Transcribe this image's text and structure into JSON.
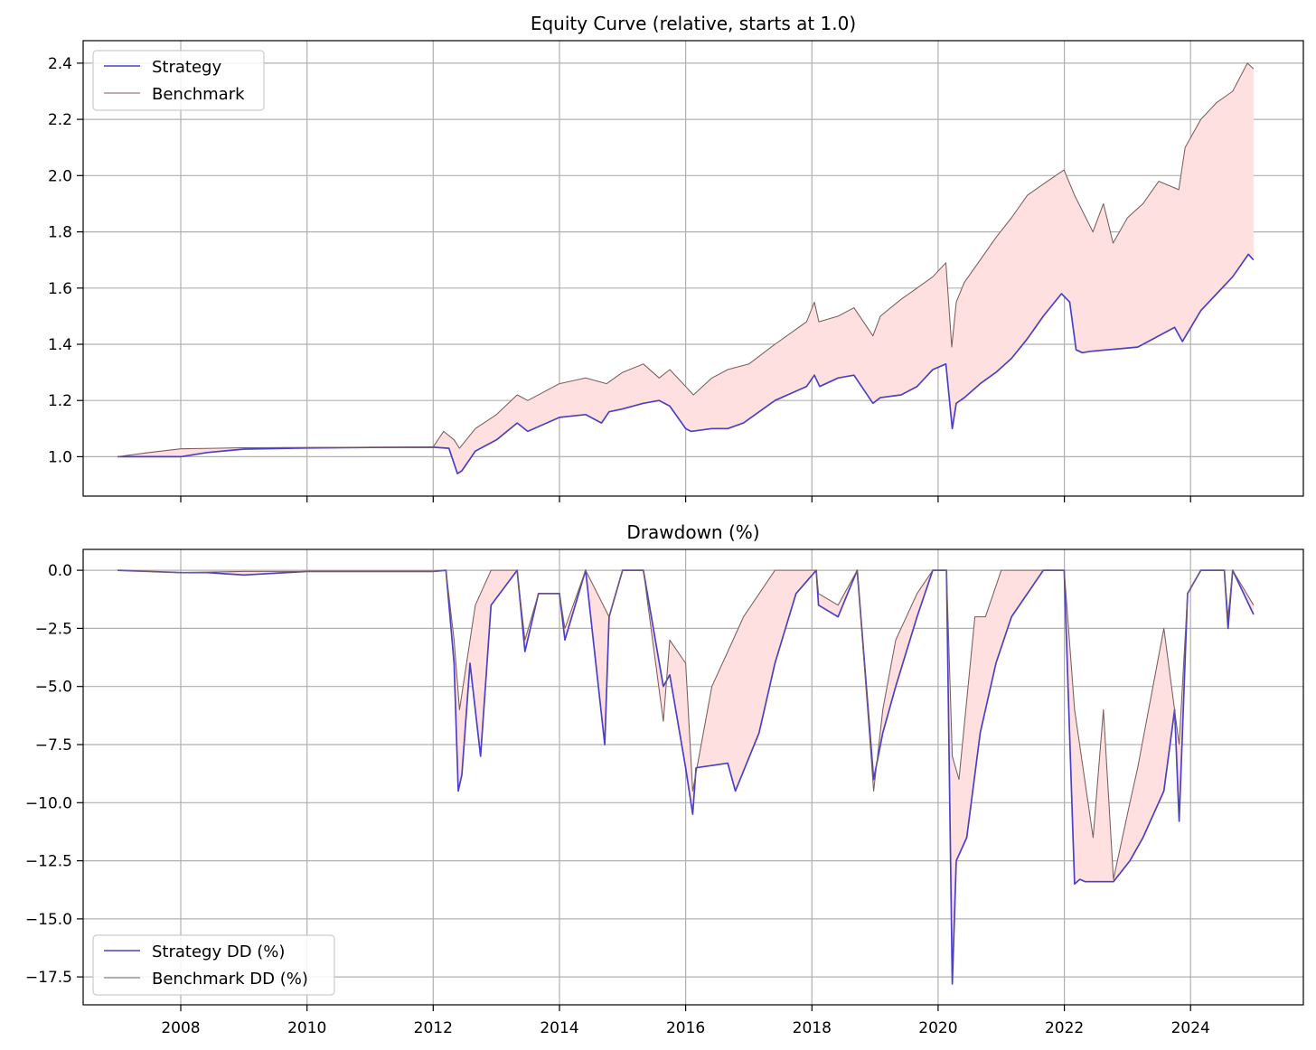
{
  "chart_data": [
    {
      "type": "line",
      "title": "Equity Curve (relative, starts at 1.0)",
      "xlabel": "",
      "ylabel": "",
      "x_type": "date",
      "xlim": [
        "2006-06-15",
        "2025-10-15"
      ],
      "ylim": [
        0.86,
        2.48
      ],
      "yticks": [
        1.0,
        1.2,
        1.4,
        1.6,
        1.8,
        2.0,
        2.2,
        2.4
      ],
      "ytick_labels": [
        "1.0",
        "1.2",
        "1.4",
        "1.6",
        "1.8",
        "2.0",
        "2.2",
        "2.4"
      ],
      "xticks": [
        "2008-01-01",
        "2010-01-01",
        "2012-01-01",
        "2014-01-01",
        "2016-01-01",
        "2018-01-01",
        "2020-01-01",
        "2022-01-01",
        "2024-01-01"
      ],
      "xtick_labels": [],
      "grid": true,
      "legend": "upper-left",
      "fill_between": {
        "color": "#ffe0e0",
        "between": [
          "Benchmark",
          "Strategy"
        ]
      },
      "series": [
        {
          "name": "Benchmark",
          "color": "#7b5c5c",
          "line_width": 0.8,
          "x": [
            "2007-01-01",
            "2007-07-01",
            "2008-01-01",
            "2008-07-01",
            "2009-01-01",
            "2010-01-01",
            "2011-01-01",
            "2012-01-01",
            "2012-03-01",
            "2012-05-01",
            "2012-06-01",
            "2012-09-01",
            "2013-01-01",
            "2013-05-01",
            "2013-07-01",
            "2014-01-01",
            "2014-06-01",
            "2014-10-01",
            "2015-01-01",
            "2015-05-01",
            "2015-08-01",
            "2015-10-01",
            "2016-01-01",
            "2016-02-15",
            "2016-06-01",
            "2016-09-01",
            "2017-01-01",
            "2017-06-01",
            "2017-12-01",
            "2018-01-15",
            "2018-02-10",
            "2018-06-01",
            "2018-09-01",
            "2018-12-20",
            "2019-02-01",
            "2019-06-01",
            "2019-09-01",
            "2019-12-01",
            "2020-02-15",
            "2020-03-20",
            "2020-04-15",
            "2020-06-01",
            "2020-09-01",
            "2020-12-01",
            "2021-03-01",
            "2021-06-01",
            "2021-09-01",
            "2021-12-30",
            "2022-03-01",
            "2022-06-15",
            "2022-08-15",
            "2022-10-10",
            "2023-01-01",
            "2023-04-01",
            "2023-07-01",
            "2023-10-25",
            "2023-12-01",
            "2024-03-01",
            "2024-06-01",
            "2024-09-01",
            "2024-11-25",
            "2024-12-31"
          ],
          "values": [
            1.0,
            1.015,
            1.028,
            1.03,
            1.032,
            1.033,
            1.034,
            1.035,
            1.09,
            1.06,
            1.03,
            1.1,
            1.15,
            1.22,
            1.2,
            1.26,
            1.28,
            1.26,
            1.3,
            1.33,
            1.28,
            1.31,
            1.25,
            1.22,
            1.28,
            1.31,
            1.33,
            1.4,
            1.48,
            1.55,
            1.48,
            1.5,
            1.53,
            1.43,
            1.5,
            1.56,
            1.6,
            1.64,
            1.69,
            1.39,
            1.55,
            1.62,
            1.7,
            1.78,
            1.85,
            1.93,
            1.97,
            2.02,
            1.93,
            1.8,
            1.9,
            1.76,
            1.85,
            1.9,
            1.98,
            1.95,
            2.1,
            2.2,
            2.26,
            2.3,
            2.4,
            2.38
          ]
        },
        {
          "name": "Strategy",
          "color": "#4a40c8",
          "line_width": 1.3,
          "x": [
            "2007-01-01",
            "2007-07-01",
            "2008-01-01",
            "2008-06-01",
            "2009-01-01",
            "2010-01-01",
            "2011-01-01",
            "2012-01-01",
            "2012-04-01",
            "2012-05-20",
            "2012-06-15",
            "2012-09-01",
            "2013-01-01",
            "2013-05-01",
            "2013-07-01",
            "2014-01-01",
            "2014-06-01",
            "2014-09-01",
            "2014-10-15",
            "2015-01-01",
            "2015-05-01",
            "2015-08-01",
            "2015-10-01",
            "2016-01-01",
            "2016-02-01",
            "2016-06-01",
            "2016-09-01",
            "2016-12-01",
            "2017-06-01",
            "2017-12-01",
            "2018-01-15",
            "2018-02-15",
            "2018-06-01",
            "2018-09-01",
            "2018-12-20",
            "2019-02-01",
            "2019-06-01",
            "2019-09-01",
            "2019-12-01",
            "2020-02-15",
            "2020-03-23",
            "2020-04-15",
            "2020-06-01",
            "2020-09-01",
            "2020-12-01",
            "2021-03-01",
            "2021-06-01",
            "2021-09-01",
            "2021-12-15",
            "2022-02-01",
            "2022-03-10",
            "2022-04-15",
            "2022-06-01",
            "2023-03-01",
            "2023-06-01",
            "2023-10-01",
            "2023-11-15",
            "2024-03-01",
            "2024-06-01",
            "2024-09-01",
            "2024-12-01",
            "2024-12-31"
          ],
          "values": [
            1.0,
            1.0,
            1.0,
            1.015,
            1.027,
            1.031,
            1.033,
            1.034,
            1.03,
            0.94,
            0.95,
            1.02,
            1.06,
            1.12,
            1.09,
            1.14,
            1.15,
            1.12,
            1.16,
            1.17,
            1.19,
            1.2,
            1.18,
            1.1,
            1.09,
            1.1,
            1.1,
            1.12,
            1.2,
            1.25,
            1.29,
            1.25,
            1.28,
            1.29,
            1.19,
            1.21,
            1.22,
            1.25,
            1.31,
            1.33,
            1.1,
            1.19,
            1.21,
            1.26,
            1.3,
            1.35,
            1.42,
            1.5,
            1.58,
            1.55,
            1.38,
            1.37,
            1.375,
            1.39,
            1.42,
            1.46,
            1.41,
            1.52,
            1.58,
            1.64,
            1.72,
            1.7
          ]
        }
      ]
    },
    {
      "type": "line",
      "title": "Drawdown (%)",
      "xlabel": "",
      "ylabel": "",
      "x_type": "date",
      "xlim": [
        "2006-06-15",
        "2025-10-15"
      ],
      "ylim": [
        -18.7,
        0.9
      ],
      "yticks": [
        0.0,
        -2.5,
        -5.0,
        -7.5,
        -10.0,
        -12.5,
        -15.0,
        -17.5
      ],
      "ytick_labels": [
        "0.0",
        "−2.5",
        "−5.0",
        "−7.5",
        "−10.0",
        "−12.5",
        "−15.0",
        "−17.5"
      ],
      "xticks": [
        "2008-01-01",
        "2010-01-01",
        "2012-01-01",
        "2014-01-01",
        "2016-01-01",
        "2018-01-01",
        "2020-01-01",
        "2022-01-01",
        "2024-01-01"
      ],
      "xtick_labels": [
        "2008",
        "2010",
        "2012",
        "2014",
        "2016",
        "2018",
        "2020",
        "2022",
        "2024"
      ],
      "grid": true,
      "legend": "lower-left",
      "fill_between": {
        "color": "#ffe0e0",
        "between": [
          "Benchmark DD (%)",
          "Strategy DD (%)"
        ]
      },
      "overlap_color": "#2a2a78",
      "series": [
        {
          "name": "Benchmark DD (%)",
          "color": "#7b5c5c",
          "line_width": 0.8,
          "x": [
            "2007-01-01",
            "2008-01-01",
            "2009-01-01",
            "2010-01-01",
            "2011-01-01",
            "2012-01-01",
            "2012-03-15",
            "2012-05-01",
            "2012-06-01",
            "2012-09-01",
            "2012-12-01",
            "2013-05-01",
            "2013-06-15",
            "2013-09-01",
            "2014-01-01",
            "2014-02-01",
            "2014-06-01",
            "2014-10-15",
            "2015-01-01",
            "2015-05-01",
            "2015-08-25",
            "2015-10-01",
            "2016-01-01",
            "2016-02-11",
            "2016-06-01",
            "2016-09-01",
            "2016-12-01",
            "2017-06-01",
            "2018-01-26",
            "2018-02-08",
            "2018-06-01",
            "2018-09-20",
            "2018-12-24",
            "2019-02-15",
            "2019-05-01",
            "2019-09-01",
            "2019-12-01",
            "2020-02-19",
            "2020-03-23",
            "2020-05-01",
            "2020-08-01",
            "2020-10-01",
            "2021-01-01",
            "2021-06-01",
            "2021-12-31",
            "2022-03-01",
            "2022-06-16",
            "2022-08-15",
            "2022-10-12",
            "2023-01-15",
            "2023-03-01",
            "2023-07-31",
            "2023-10-27",
            "2023-12-15",
            "2024-03-01",
            "2024-07-15",
            "2024-08-05",
            "2024-09-01",
            "2024-12-31"
          ],
          "values": [
            0,
            -0.1,
            -0.05,
            -0.05,
            -0.05,
            -0.05,
            0,
            -3.0,
            -6.0,
            -1.5,
            0,
            0,
            -3.0,
            -1.0,
            -1.0,
            -2.5,
            0,
            -2.0,
            0,
            0,
            -6.5,
            -3.0,
            -4.0,
            -9.5,
            -5.0,
            -3.5,
            -2.0,
            0,
            0,
            -1.0,
            -1.5,
            0,
            -9.5,
            -6.0,
            -3.0,
            -1.0,
            0,
            0,
            -8.0,
            -9.0,
            -2.0,
            -2.0,
            0,
            0,
            0,
            -6.0,
            -11.5,
            -6.0,
            -13.3,
            -10.0,
            -8.5,
            -2.5,
            -7.5,
            -1.0,
            0,
            0,
            -2.0,
            0,
            -1.5
          ]
        },
        {
          "name": "Strategy DD (%)",
          "color": "#4a40c8",
          "line_width": 1.3,
          "x": [
            "2007-01-01",
            "2008-01-01",
            "2008-06-01",
            "2009-01-01",
            "2010-01-01",
            "2011-01-01",
            "2012-01-01",
            "2012-03-15",
            "2012-05-01",
            "2012-05-25",
            "2012-06-15",
            "2012-08-01",
            "2012-10-01",
            "2012-12-01",
            "2013-05-01",
            "2013-06-15",
            "2013-09-01",
            "2014-01-01",
            "2014-02-01",
            "2014-06-01",
            "2014-09-20",
            "2014-10-15",
            "2015-01-01",
            "2015-05-01",
            "2015-08-25",
            "2015-10-01",
            "2016-01-01",
            "2016-02-11",
            "2016-03-01",
            "2016-09-01",
            "2016-10-15",
            "2017-03-01",
            "2017-06-01",
            "2017-10-01",
            "2018-01-26",
            "2018-02-08",
            "2018-06-01",
            "2018-09-20",
            "2018-12-24",
            "2019-02-15",
            "2019-05-01",
            "2019-09-01",
            "2019-12-01",
            "2020-02-19",
            "2020-03-23",
            "2020-04-15",
            "2020-06-15",
            "2020-09-01",
            "2020-12-01",
            "2021-03-01",
            "2021-06-01",
            "2021-09-01",
            "2021-12-31",
            "2022-03-01",
            "2022-04-01",
            "2022-05-01",
            "2022-10-12",
            "2023-01-15",
            "2023-04-01",
            "2023-07-31",
            "2023-10-01",
            "2023-10-27",
            "2023-12-15",
            "2024-03-01",
            "2024-07-15",
            "2024-08-05",
            "2024-09-01",
            "2024-12-31"
          ],
          "values": [
            0,
            -0.1,
            -0.1,
            -0.2,
            -0.05,
            -0.05,
            -0.05,
            0,
            -4.0,
            -9.5,
            -8.8,
            -4.0,
            -8.0,
            -1.5,
            0,
            -3.5,
            -1.0,
            -1.0,
            -3.0,
            0,
            -7.5,
            -2.0,
            0,
            0,
            -5.0,
            -4.5,
            -8.5,
            -10.5,
            -8.5,
            -8.3,
            -9.5,
            -7.0,
            -4.0,
            -1.0,
            0,
            -1.5,
            -2.0,
            0,
            -9.0,
            -7.0,
            -5.0,
            -2.0,
            0,
            0,
            -17.8,
            -12.5,
            -11.5,
            -7.0,
            -4.0,
            -2.0,
            -1.0,
            0,
            0,
            -13.5,
            -13.3,
            -13.4,
            -13.4,
            -12.5,
            -11.5,
            -9.5,
            -6.0,
            -10.8,
            -1.0,
            0,
            0,
            -2.5,
            0,
            -1.9
          ]
        }
      ]
    }
  ]
}
